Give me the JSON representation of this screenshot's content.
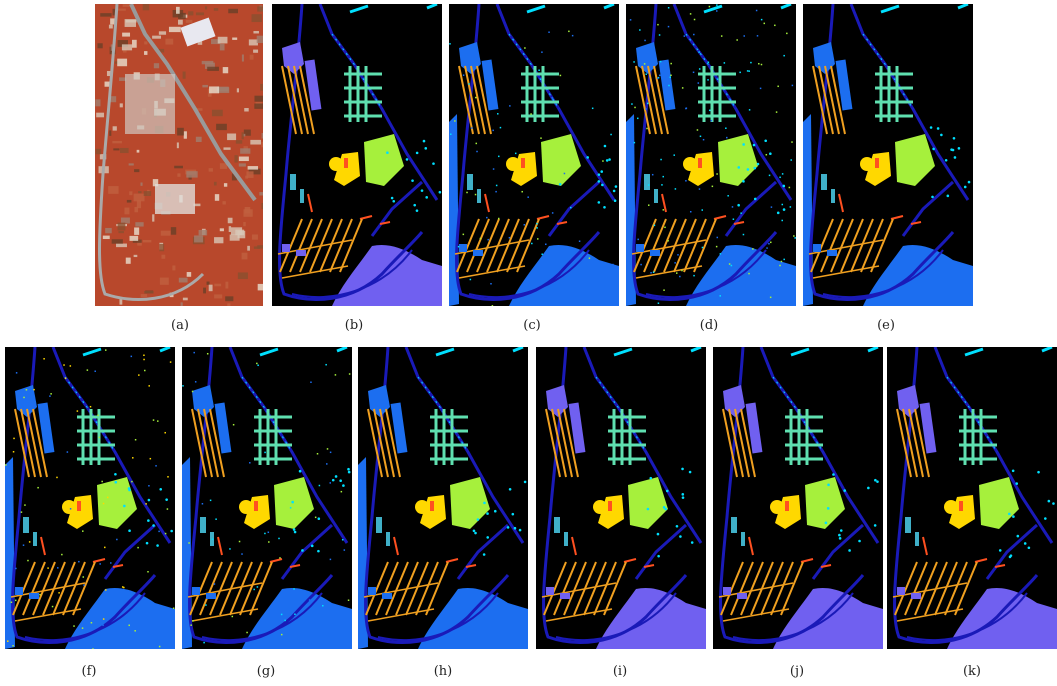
{
  "figure": {
    "panels": [
      {
        "id": "a",
        "caption": "(a)",
        "kind": "rgb"
      },
      {
        "id": "b",
        "caption": "(b)",
        "kind": "gt"
      },
      {
        "id": "c",
        "caption": "(c)",
        "kind": "map",
        "variant": "blue_noisy"
      },
      {
        "id": "d",
        "caption": "(d)",
        "kind": "map",
        "variant": "blue_noisier"
      },
      {
        "id": "e",
        "caption": "(e)",
        "kind": "map",
        "variant": "blue_clean"
      },
      {
        "id": "f",
        "caption": "(f)",
        "kind": "map",
        "variant": "blue_mixed"
      },
      {
        "id": "g",
        "caption": "(g)",
        "kind": "map",
        "variant": "blue_noisy"
      },
      {
        "id": "h",
        "caption": "(h)",
        "kind": "map",
        "variant": "blue_clean"
      },
      {
        "id": "i",
        "caption": "(i)",
        "kind": "map",
        "variant": "purple_clean"
      },
      {
        "id": "j",
        "caption": "(j)",
        "kind": "map",
        "variant": "purple_clean"
      },
      {
        "id": "k",
        "caption": "(k)",
        "kind": "map",
        "variant": "purple_clean"
      }
    ],
    "class_colors": {
      "road": "#1a1ab8",
      "meadow": "#a6f03c",
      "building_teal": "#5fe0b0",
      "parking": "#f0a020",
      "soil": "#ff5020",
      "bare": "#ffd800",
      "shadow": "#40b0c8",
      "gravel": "#00e0ff",
      "region_purple": "#7060f0",
      "region_blue": "#1c6ef0"
    }
  }
}
